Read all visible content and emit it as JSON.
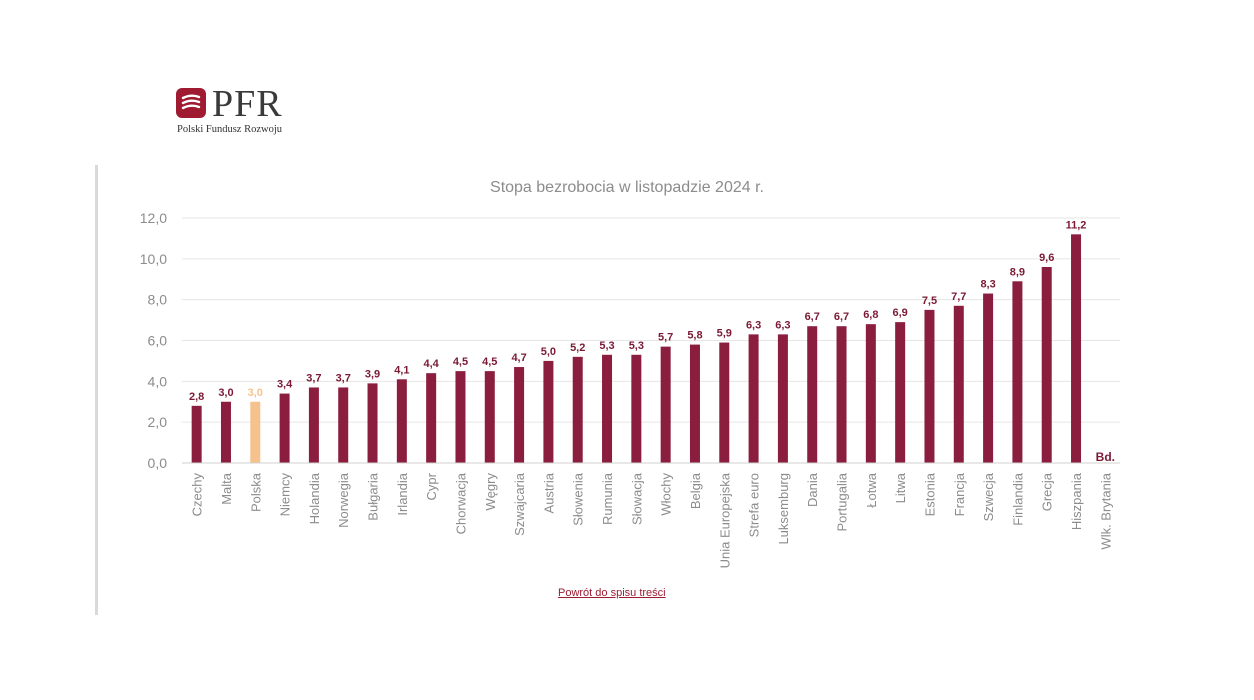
{
  "logo": {
    "text": "PFR",
    "subtitle": "Polski Fundusz Rozwoju"
  },
  "footer": {
    "back_link": "Powrót do spisu treści"
  },
  "colors": {
    "bar": "#8b1e3f",
    "highlight": "#f5c28e",
    "label": "#7a1a35",
    "axis_text": "#8c8c8c",
    "grid": "#e6e6e6"
  },
  "chart_data": {
    "type": "bar",
    "title": "Stopa bezrobocia w listopadzie 2024 r.",
    "xlabel": "",
    "ylabel": "",
    "ylim": [
      0,
      12
    ],
    "yticks": [
      "0,0",
      "2,0",
      "4,0",
      "6,0",
      "8,0",
      "10,0",
      "12,0"
    ],
    "grid": true,
    "categories": [
      "Czechy",
      "Malta",
      "Polska",
      "Niemcy",
      "Holandia",
      "Norwegia",
      "Bułgaria",
      "Irlandia",
      "Cypr",
      "Chorwacja",
      "Węgry",
      "Szwajcaria",
      "Austria",
      "Słowenia",
      "Rumunia",
      "Słowacja",
      "Włochy",
      "Belgia",
      "Unia Europejska",
      "Strefa euro",
      "Luksemburg",
      "Dania",
      "Portugalia",
      "Łotwa",
      "Litwa",
      "Estonia",
      "Francja",
      "Szwecja",
      "Finlandia",
      "Grecja",
      "Hiszpania",
      "Wlk. Brytania"
    ],
    "values": [
      2.8,
      3.0,
      3.0,
      3.4,
      3.7,
      3.7,
      3.9,
      4.1,
      4.4,
      4.5,
      4.5,
      4.7,
      5.0,
      5.2,
      5.3,
      5.3,
      5.7,
      5.8,
      5.9,
      6.3,
      6.3,
      6.7,
      6.7,
      6.8,
      6.9,
      7.5,
      7.7,
      8.3,
      8.9,
      9.6,
      11.2,
      null
    ],
    "labels": [
      "2,8",
      "3,0",
      "3,0",
      "3,4",
      "3,7",
      "3,7",
      "3,9",
      "4,1",
      "4,4",
      "4,5",
      "4,5",
      "4,7",
      "5,0",
      "5,2",
      "5,3",
      "5,3",
      "5,7",
      "5,8",
      "5,9",
      "6,3",
      "6,3",
      "6,7",
      "6,7",
      "6,8",
      "6,9",
      "7,5",
      "7,7",
      "8,3",
      "8,9",
      "9,6",
      "11,2",
      "Bd."
    ],
    "highlight": "Polska"
  }
}
